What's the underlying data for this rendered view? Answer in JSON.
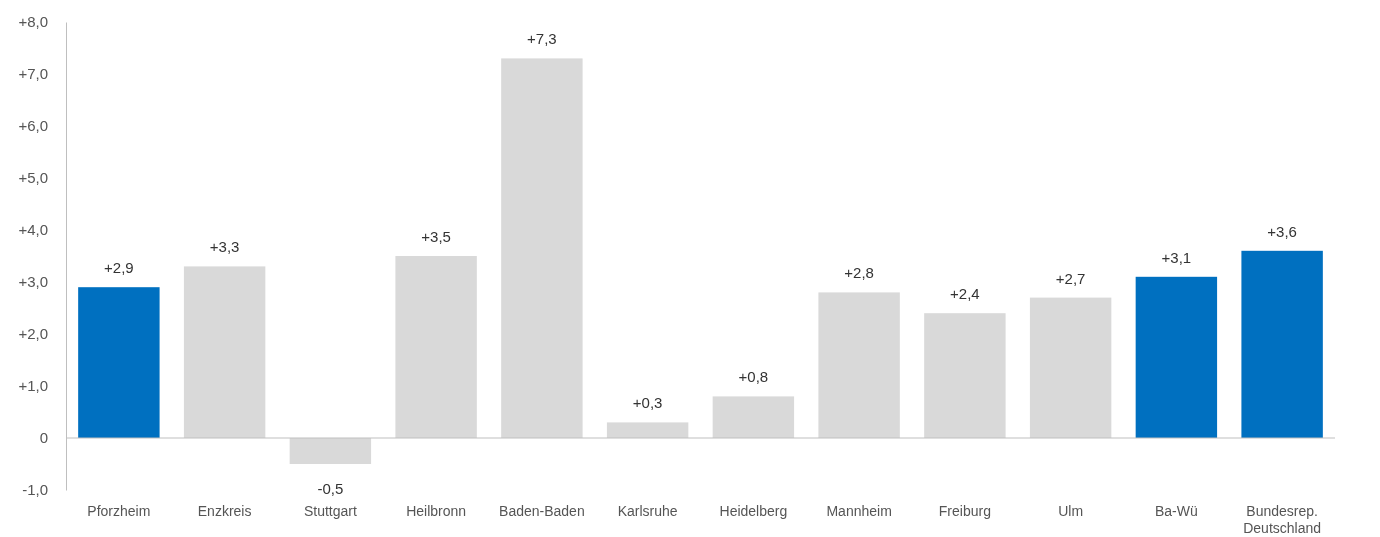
{
  "chart_data": {
    "type": "bar",
    "categories": [
      "Pforzheim",
      "Enzkreis",
      "Stuttgart",
      "Heilbronn",
      "Baden-Baden",
      "Karlsruhe",
      "Heidelberg",
      "Mannheim",
      "Freiburg",
      "Ulm",
      "Ba-Wü",
      "Bundesrep. Deutschland"
    ],
    "values": [
      2.9,
      3.3,
      -0.5,
      3.5,
      7.3,
      0.3,
      0.8,
      2.8,
      2.4,
      2.7,
      3.1,
      3.6
    ],
    "colors": [
      "#0070c0",
      "#d9d9d9",
      "#d9d9d9",
      "#d9d9d9",
      "#d9d9d9",
      "#d9d9d9",
      "#d9d9d9",
      "#d9d9d9",
      "#d9d9d9",
      "#d9d9d9",
      "#0070c0",
      "#0070c0"
    ],
    "value_labels": [
      "+2,9",
      "+3,3",
      "-0,5",
      "+3,5",
      "+7,3",
      "+0,3",
      "+0,8",
      "+2,8",
      "+2,4",
      "+2,7",
      "+3,1",
      "+3,6"
    ],
    "ylim": [
      -1,
      8
    ],
    "yticks": [
      {
        "value": -1,
        "label": "-1,0"
      },
      0,
      {
        "value": 1,
        "label": "+1,0"
      },
      {
        "value": 2,
        "label": "+2,0"
      },
      {
        "value": 3,
        "label": "+3,0"
      },
      {
        "value": 4,
        "label": "+4,0"
      },
      {
        "value": 5,
        "label": "+5,0"
      },
      {
        "value": 6,
        "label": "+6,0"
      },
      {
        "value": 7,
        "label": "+7,0"
      },
      {
        "value": 8,
        "label": "+8,0"
      }
    ]
  }
}
